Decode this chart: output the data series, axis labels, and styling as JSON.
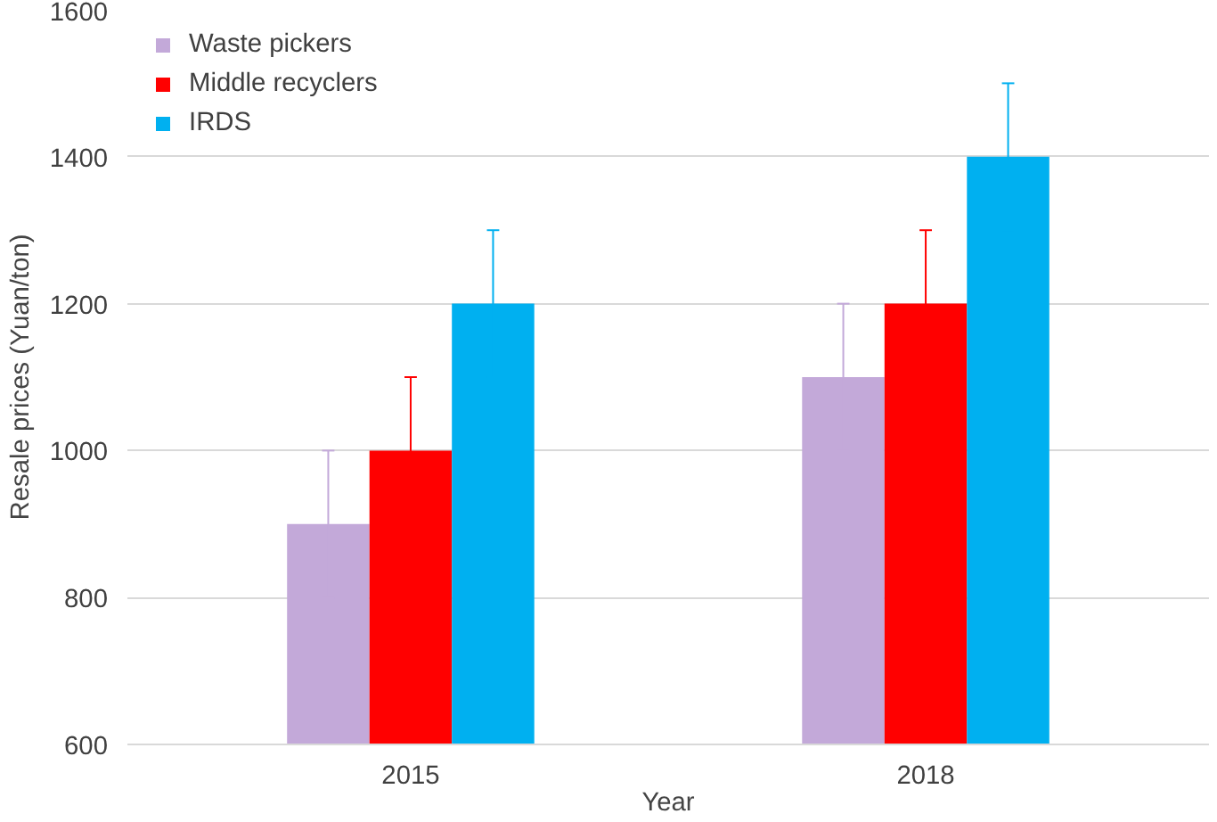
{
  "chart_data": {
    "type": "bar",
    "xlabel": "Year",
    "ylabel": "Resale prices (Yuan/ton)",
    "categories": [
      "2015",
      "2018"
    ],
    "series": [
      {
        "name": "Waste pickers",
        "color": "#c3a9d9",
        "values": [
          900,
          1100
        ],
        "errors": [
          100,
          100
        ]
      },
      {
        "name": "Middle recyclers",
        "color": "#ff0000",
        "values": [
          1000,
          1200
        ],
        "errors": [
          100,
          100
        ]
      },
      {
        "name": "IRDS",
        "color": "#00b0f0",
        "values": [
          1200,
          1400
        ],
        "errors": [
          100,
          100
        ]
      }
    ],
    "ylim": [
      600,
      1600
    ],
    "yticks": [
      600,
      800,
      1000,
      1200,
      1400,
      1600
    ],
    "grid": "y",
    "legend": "top left"
  }
}
